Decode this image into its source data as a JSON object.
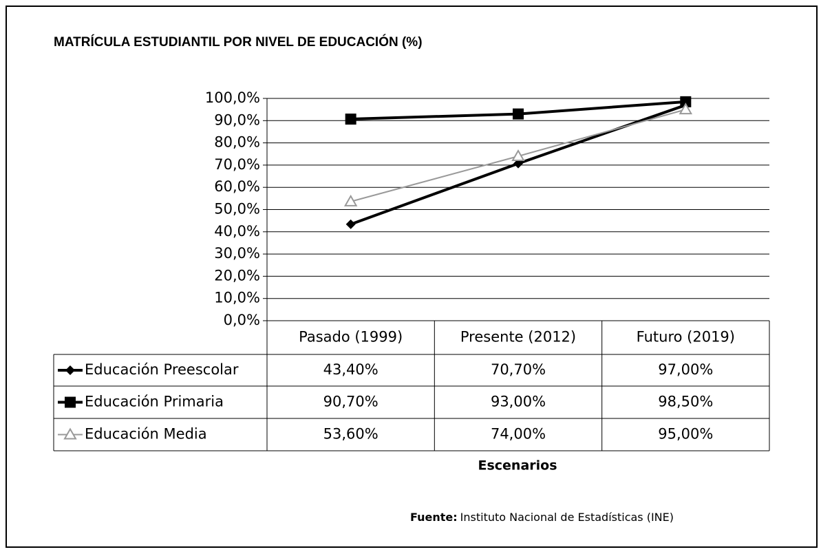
{
  "chart_data": {
    "type": "line",
    "title": "MATRÍCULA ESTUDIANTIL POR NIVEL DE EDUCACIÓN (%)",
    "categories": [
      "Pasado (1999)",
      "Presente (2012)",
      "Futuro (2019)"
    ],
    "series": [
      {
        "name": "Educación Preescolar",
        "color": "#000000",
        "marker": "diamond",
        "values": [
          43.4,
          70.7,
          97.0
        ],
        "value_labels": [
          "43,40%",
          "70,70%",
          "97,00%"
        ]
      },
      {
        "name": "Educación Primaria",
        "color": "#000000",
        "marker": "square",
        "values": [
          90.7,
          93.0,
          98.5
        ],
        "value_labels": [
          "90,70%",
          "93,00%",
          "98,50%"
        ]
      },
      {
        "name": "Educación Media",
        "color": "#999999",
        "marker": "triangle",
        "values": [
          53.6,
          74.0,
          95.0
        ],
        "value_labels": [
          "53,60%",
          "74,00%",
          "95,00%"
        ]
      }
    ],
    "ylim": [
      0,
      100
    ],
    "yticks": [
      {
        "value": 0,
        "label": "0,0%"
      },
      {
        "value": 10,
        "label": "10,0%"
      },
      {
        "value": 20,
        "label": "20,0%"
      },
      {
        "value": 30,
        "label": "30,0%"
      },
      {
        "value": 40,
        "label": "40,0%"
      },
      {
        "value": 50,
        "label": "50,0%"
      },
      {
        "value": 60,
        "label": "60,0%"
      },
      {
        "value": 70,
        "label": "70,0%"
      },
      {
        "value": 80,
        "label": "80,0%"
      },
      {
        "value": 90,
        "label": "90,0%"
      },
      {
        "value": 100,
        "label": "100,0%"
      }
    ],
    "grid": true,
    "x_label": "Escenarios",
    "source_label": "Fuente:",
    "source": "Instituto Nacional de Estadísticas (INE)"
  }
}
